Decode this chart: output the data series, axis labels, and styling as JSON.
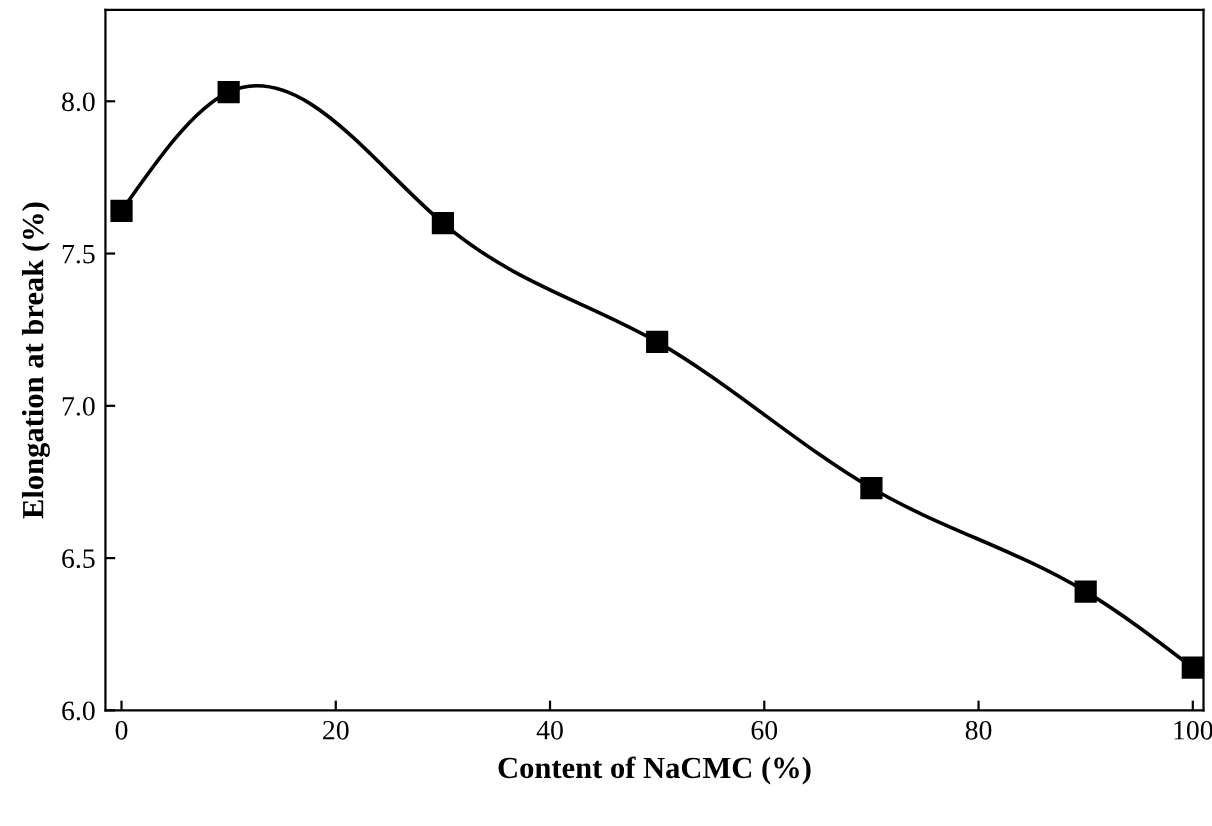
{
  "chart_data": {
    "type": "line",
    "xlabel": "Content of NaCMC (%)",
    "ylabel": "Elongation at break (%)",
    "x": [
      0,
      10,
      30,
      50,
      70,
      90,
      100
    ],
    "series": [
      {
        "color": "#000000",
        "values": [
          7.64,
          8.03,
          7.6,
          7.21,
          6.73,
          6.39,
          6.14
        ]
      }
    ],
    "xlim": [
      -1.5,
      101
    ],
    "xticks": [
      0,
      20,
      40,
      60,
      80,
      100
    ],
    "ylim": [
      6.0,
      8.3
    ],
    "yticks": [
      {
        "value": 6.0,
        "label": "6.0"
      },
      {
        "value": 6.5,
        "label": "6.5"
      },
      {
        "value": 7.0,
        "label": "7.0"
      },
      {
        "value": 7.5,
        "label": "7.5"
      },
      {
        "value": 8.0,
        "label": "8.0"
      }
    ],
    "marker": "square",
    "line_style": "solid",
    "grid": false
  }
}
